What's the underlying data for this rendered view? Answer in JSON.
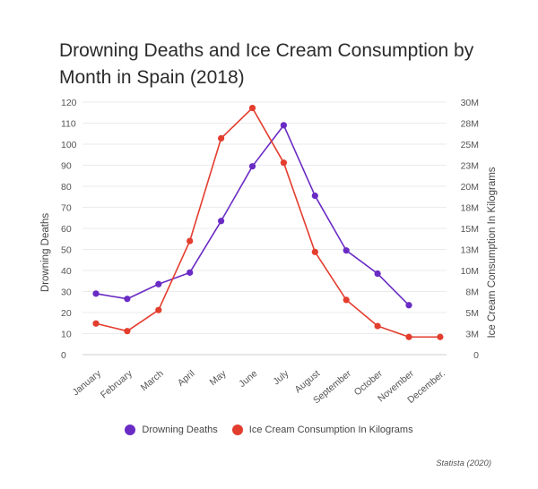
{
  "chart_data": {
    "type": "line",
    "title": "Drowning Deaths and Ice Cream Consumption by Month in Spain (2018)",
    "categories": [
      "January",
      "February",
      "March",
      "April",
      "May",
      "June",
      "July",
      "August",
      "September",
      "October",
      "November",
      "December"
    ],
    "category_label_suffix": [
      "",
      "",
      "",
      "",
      "",
      "",
      "",
      "",
      "",
      "",
      "",
      "."
    ],
    "y_left": {
      "label": "Drowning Deaths",
      "ylim": [
        0,
        120
      ],
      "ticks": [
        "0",
        "10",
        "20",
        "30",
        "40",
        "50",
        "60",
        "70",
        "80",
        "90",
        "100",
        "110",
        "120"
      ]
    },
    "y_right": {
      "label": "Ice Cream Consumption In Kilograms",
      "ylim": [
        0,
        30000000
      ],
      "tick_values": [
        0,
        2500000,
        5000000,
        7500000,
        10000000,
        12500000,
        15000000,
        17500000,
        20000000,
        22500000,
        25000000,
        27500000,
        30000000
      ],
      "ticks": [
        "0",
        "3M",
        "5M",
        "8M",
        "10M",
        "13M",
        "15M",
        "18M",
        "20M",
        "23M",
        "25M",
        "28M",
        "30M"
      ]
    },
    "series": [
      {
        "name": "Drowning Deaths",
        "axis": "left",
        "color": "#6a2bc4",
        "values": [
          29,
          26.5,
          33.5,
          39,
          63.5,
          89.5,
          109,
          75.5,
          49.5,
          38.5,
          23.5,
          null
        ]
      },
      {
        "name": "Ice Cream Consumption In Kilograms",
        "axis": "right",
        "color": "#e33d2e",
        "values": [
          3700000,
          2800000,
          5300000,
          13500000,
          25700000,
          29300000,
          22800000,
          12200000,
          6500000,
          3400000,
          2100000,
          2100000
        ]
      }
    ],
    "grid": true,
    "legend_position": "bottom"
  },
  "source": "Statista (2020)"
}
